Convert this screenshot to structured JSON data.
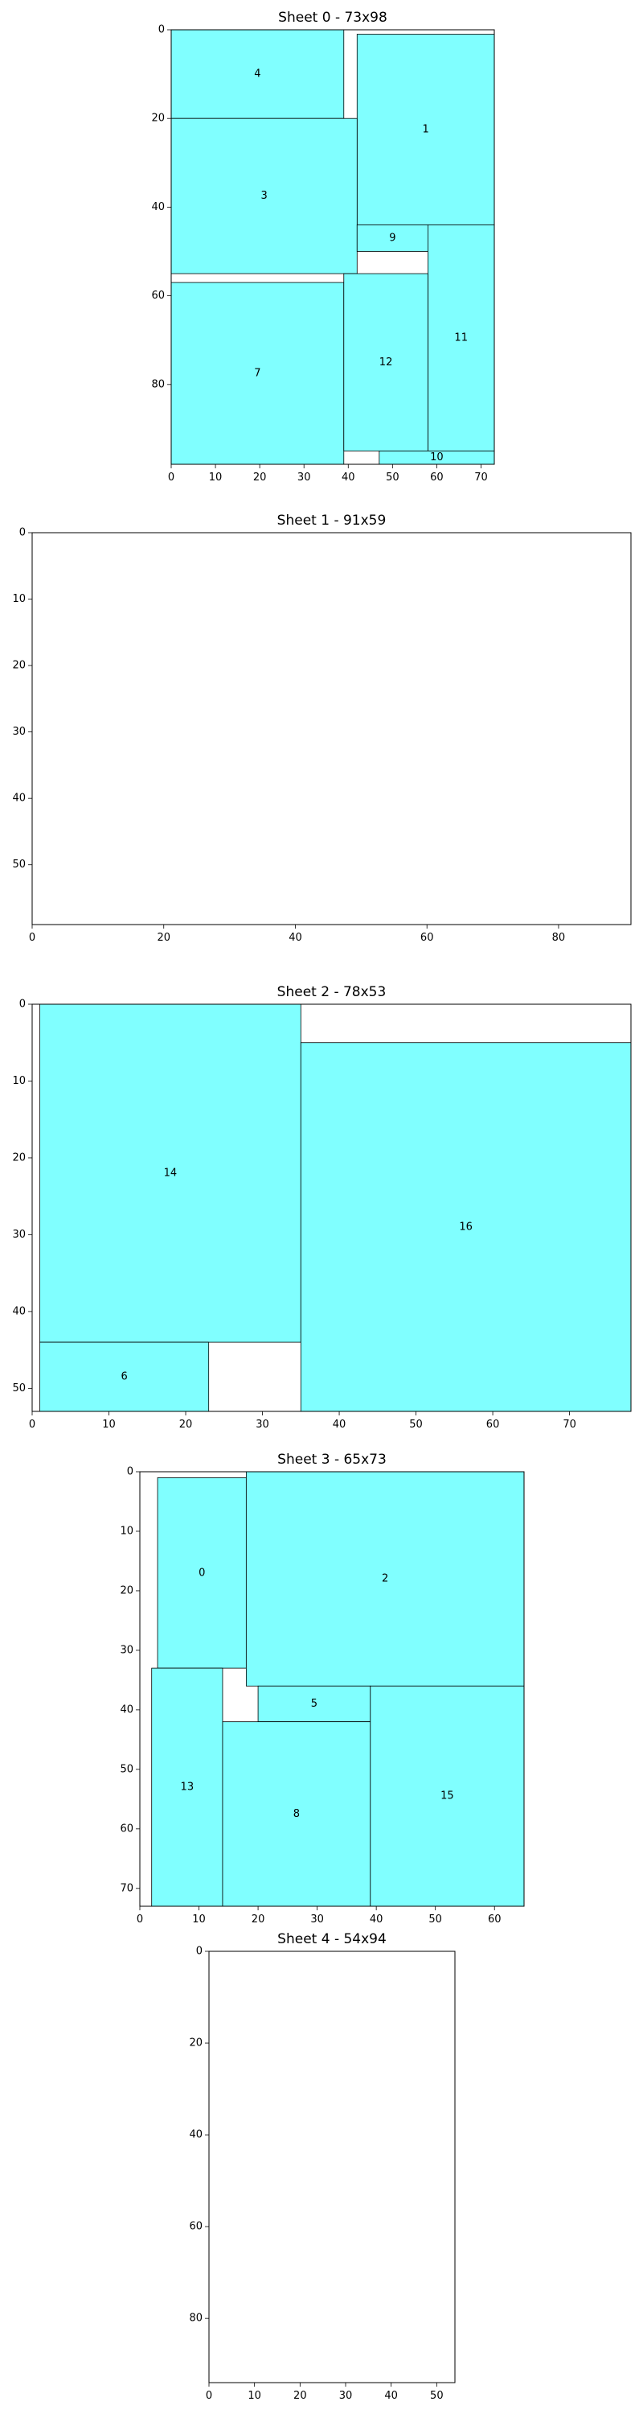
{
  "chart_data": [
    {
      "type": "rectangle-packing",
      "title": "Sheet 0 - 73x98",
      "sheet": {
        "width": 73,
        "height": 98
      },
      "xlim": [
        0,
        73
      ],
      "ylim": [
        0,
        98
      ],
      "y_inverted": true,
      "xticks": [
        0,
        10,
        20,
        30,
        40,
        50,
        60,
        70
      ],
      "yticks": [
        0,
        20,
        40,
        60,
        80
      ],
      "pieces": [
        {
          "label": "4",
          "x": 0,
          "y": 0,
          "w": 39,
          "h": 20
        },
        {
          "label": "1",
          "x": 42,
          "y": 1,
          "w": 31,
          "h": 43
        },
        {
          "label": "3",
          "x": 0,
          "y": 20,
          "w": 42,
          "h": 35
        },
        {
          "label": "9",
          "x": 42,
          "y": 44,
          "w": 16,
          "h": 6
        },
        {
          "label": "11",
          "x": 58,
          "y": 44,
          "w": 15,
          "h": 51
        },
        {
          "label": "7",
          "x": 0,
          "y": 57,
          "w": 39,
          "h": 41
        },
        {
          "label": "12",
          "x": 39,
          "y": 55,
          "w": 19,
          "h": 40
        },
        {
          "label": "10",
          "x": 47,
          "y": 95,
          "w": 26,
          "h": 3
        }
      ]
    },
    {
      "type": "rectangle-packing",
      "title": "Sheet 1 - 91x59",
      "sheet": {
        "width": 91,
        "height": 59
      },
      "xlim": [
        0,
        91
      ],
      "ylim": [
        0,
        59
      ],
      "y_inverted": true,
      "xticks": [
        0,
        20,
        40,
        60,
        80
      ],
      "yticks": [
        0,
        10,
        20,
        30,
        40,
        50
      ],
      "pieces": []
    },
    {
      "type": "rectangle-packing",
      "title": "Sheet 2 - 78x53",
      "sheet": {
        "width": 78,
        "height": 53
      },
      "xlim": [
        0,
        78
      ],
      "ylim": [
        0,
        53
      ],
      "y_inverted": true,
      "xticks": [
        0,
        10,
        20,
        30,
        40,
        50,
        60,
        70
      ],
      "yticks": [
        0,
        10,
        20,
        30,
        40,
        50
      ],
      "pieces": [
        {
          "label": "14",
          "x": 1,
          "y": 0,
          "w": 34,
          "h": 44
        },
        {
          "label": "16",
          "x": 35,
          "y": 5,
          "w": 43,
          "h": 48
        },
        {
          "label": "6",
          "x": 1,
          "y": 44,
          "w": 22,
          "h": 9
        }
      ]
    },
    {
      "type": "rectangle-packing",
      "title": "Sheet 3 - 65x73",
      "sheet": {
        "width": 65,
        "height": 73
      },
      "xlim": [
        0,
        65
      ],
      "ylim": [
        0,
        73
      ],
      "y_inverted": true,
      "xticks": [
        0,
        10,
        20,
        30,
        40,
        50,
        60
      ],
      "yticks": [
        0,
        10,
        20,
        30,
        40,
        50,
        60,
        70
      ],
      "pieces": [
        {
          "label": "0",
          "x": 3,
          "y": 1,
          "w": 15,
          "h": 32
        },
        {
          "label": "2",
          "x": 18,
          "y": 0,
          "w": 47,
          "h": 36
        },
        {
          "label": "5",
          "x": 20,
          "y": 36,
          "w": 19,
          "h": 6
        },
        {
          "label": "13",
          "x": 2,
          "y": 33,
          "w": 12,
          "h": 40
        },
        {
          "label": "8",
          "x": 14,
          "y": 42,
          "w": 25,
          "h": 31
        },
        {
          "label": "15",
          "x": 39,
          "y": 36,
          "w": 26,
          "h": 37
        }
      ]
    },
    {
      "type": "rectangle-packing",
      "title": "Sheet 4 - 54x94",
      "sheet": {
        "width": 54,
        "height": 94
      },
      "xlim": [
        0,
        54
      ],
      "ylim": [
        0,
        94
      ],
      "y_inverted": true,
      "xticks": [
        0,
        10,
        20,
        30,
        40,
        50
      ],
      "yticks": [
        0,
        20,
        40,
        60,
        80
      ],
      "pieces": []
    }
  ],
  "colors": {
    "piece_fill": "#80ffff",
    "piece_edge": "#000000",
    "frame": "#000000",
    "background": "#ffffff"
  }
}
